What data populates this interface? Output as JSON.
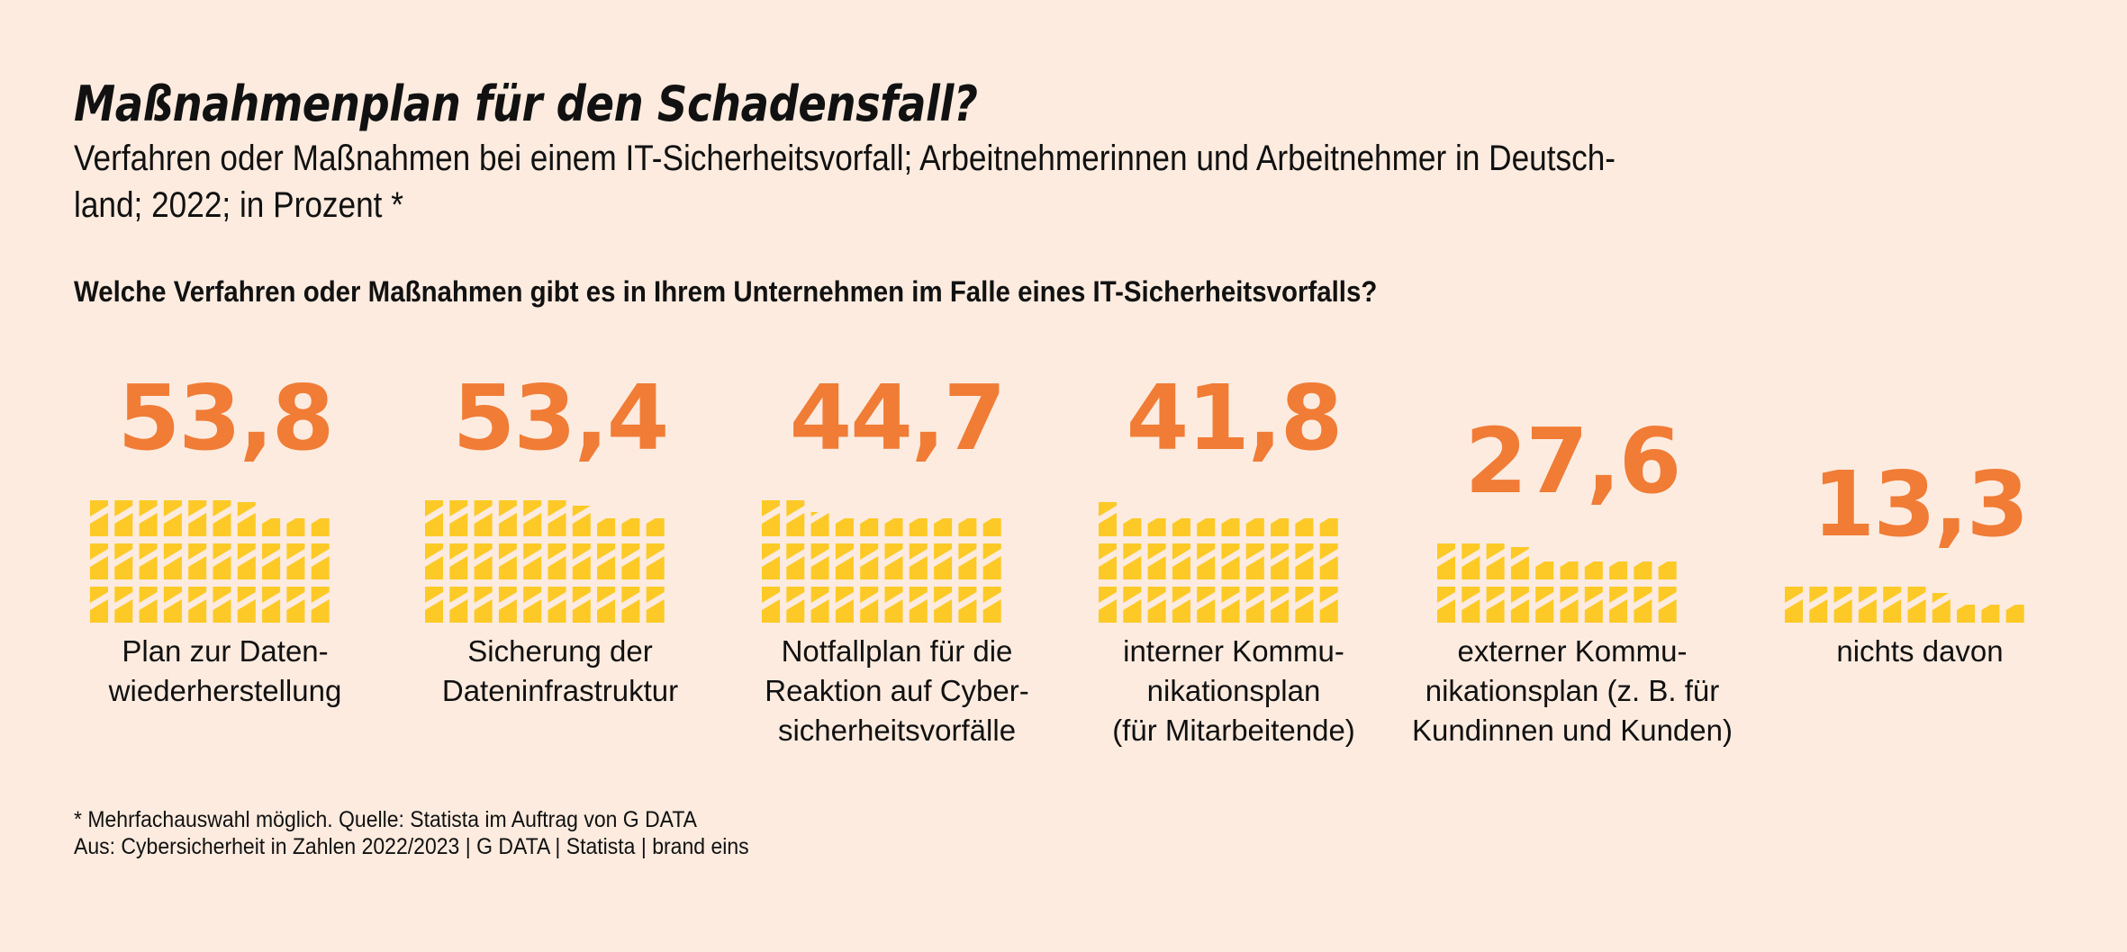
{
  "header": {
    "title": "Maßnahmenplan für den Schadensfall?",
    "subtitle": "Verfahren oder Maßnahmen bei einem IT-Sicherheitsvorfall; Arbeitnehmerinnen und Arbeitnehmer in Deutsch-land; 2022; in Prozent *",
    "subtitle_line1": "Verfahren oder Maßnahmen bei einem IT-Sicherheitsvorfall; Arbeitnehmerinnen und Arbeitnehmer in Deutsch-",
    "subtitle_line2": "land; 2022; in Prozent *",
    "question": "Welche Verfahren oder Maßnahmen gibt es in Ihrem Unternehmen im Falle eines IT-Sicherheitsvorfalls?"
  },
  "colors": {
    "background": "#fdebdf",
    "value_text": "#f07c36",
    "icon_fill": "#fdc926"
  },
  "chart_data": {
    "type": "bar",
    "title": "Maßnahmenplan für den Schadensfall?",
    "subtitle": "Verfahren oder Maßnahmen bei einem IT-Sicherheitsvorfall; Arbeitnehmerinnen und Arbeitnehmer in Deutschland; 2022; in Prozent *",
    "xlabel": "",
    "ylabel": "Prozent",
    "ylim": [
      0,
      100
    ],
    "representation": "icon grid, 10 icons per row, each row = 20%",
    "categories": [
      "Plan zur Datenwiederherstellung",
      "Sicherung der Dateninfrastruktur",
      "Notfallplan für die Reaktion auf Cybersicherheitsvorfälle",
      "interner Kommunikationsplan (für Mitarbeitende)",
      "externer Kommunikationsplan (z. B. für Kundinnen und Kunden)",
      "nichts davon"
    ],
    "values": [
      53.8,
      53.4,
      44.7,
      41.8,
      27.6,
      13.3
    ],
    "value_labels": [
      "53,8",
      "53,4",
      "44,7",
      "41,8",
      "27,6",
      "13,3"
    ],
    "label_lines": [
      [
        "Plan zur Daten-",
        "wiederherstellung"
      ],
      [
        "Sicherung der",
        "Dateninfrastruktur"
      ],
      [
        "Notfallplan für die",
        "Reaktion auf Cyber-",
        "sicherheitsvorfälle"
      ],
      [
        "interner Kommu-",
        "nikationsplan",
        "(für Mitarbeitende)"
      ],
      [
        "externer Kommu-",
        "nikationsplan (z. B. für",
        "Kundinnen und Kunden)"
      ],
      [
        "nichts davon"
      ]
    ]
  },
  "footer": {
    "note": "* Mehrfachauswahl möglich. Quelle: Statista im Auftrag von G DATA",
    "source": "Aus: Cybersicherheit in Zahlen 2022/2023 | G DATA | Statista | brand eins"
  }
}
